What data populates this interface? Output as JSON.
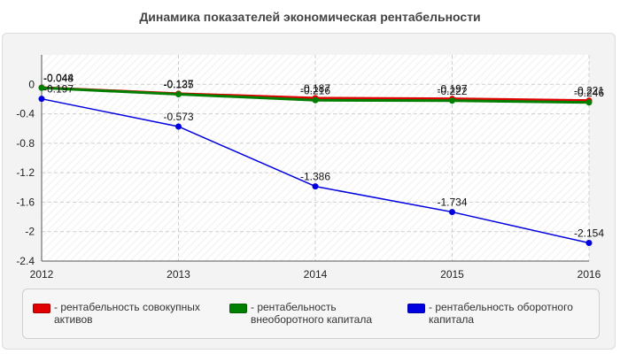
{
  "chart_data": {
    "type": "line",
    "title": "Динамика показателей экономическая рентабельности",
    "xlabel": "",
    "ylabel": "",
    "categories": [
      "2012",
      "2013",
      "2014",
      "2015",
      "2016"
    ],
    "ylim": [
      -2.4,
      0.4
    ],
    "yticks": [
      "0",
      "-0.4",
      "-0.8",
      "-1.2",
      "-1.6",
      "-2",
      "-2.4"
    ],
    "grid": true,
    "legend_position": "bottom",
    "series": [
      {
        "name": "- рентабельность совокупных активов",
        "color": "#e00000",
        "values": [
          -0.044,
          -0.127,
          -0.187,
          -0.197,
          -0.221
        ],
        "labels": [
          "-0.044",
          "-0.127",
          "-0.187",
          "-0.197",
          "-0.221"
        ]
      },
      {
        "name": "- рентабельность внеоборотного капитала",
        "color": "#008000",
        "values": [
          -0.048,
          -0.135,
          -0.216,
          -0.222,
          -0.246
        ],
        "labels": [
          "-0.048",
          "-0.135",
          "-0.216",
          "-0.222",
          "-0.246"
        ]
      },
      {
        "name": "- рентабельность оборотного капитала",
        "color": "#0000e0",
        "values": [
          -0.197,
          -0.573,
          -1.386,
          -1.734,
          -2.154
        ],
        "labels": [
          "-0.197",
          "-0.573",
          "-1.386",
          "-1.734",
          "-2.154"
        ]
      }
    ]
  }
}
